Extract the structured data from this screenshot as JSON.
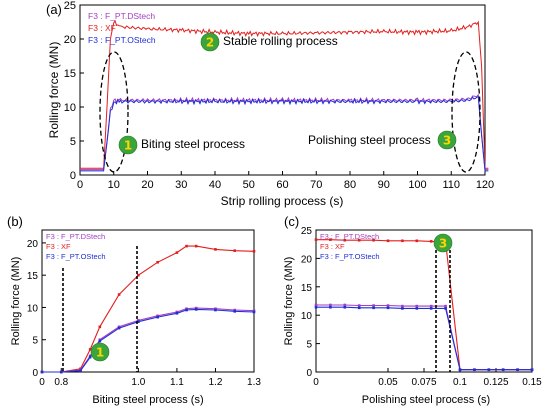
{
  "colors": {
    "dstech": "#a23fc3",
    "xf": "#e31e1e",
    "ostech": "#1f2fd6",
    "badge": "#3aa53a",
    "badge_text": "#ffd400"
  },
  "chart_data": [
    {
      "panel": "(a)",
      "type": "line",
      "xlabel": "Strip rolling process (s)",
      "ylabel": "Rolling force (MN)",
      "xlim": [
        0,
        120
      ],
      "ylim": [
        0,
        25
      ],
      "xticks": [
        0,
        10,
        20,
        30,
        40,
        50,
        60,
        70,
        80,
        90,
        100,
        110,
        120
      ],
      "yticks": [
        0,
        5,
        10,
        15,
        20,
        25
      ],
      "legend": [
        "F3 : F_PT.DStech",
        "F3 : XF",
        "F3 : F_PT.OStech"
      ],
      "annotations": [
        {
          "badge": "1",
          "text": "Biting steel process"
        },
        {
          "badge": "2",
          "text": "Stable rolling process"
        },
        {
          "badge": "3",
          "text": "Polishing steel process"
        }
      ],
      "series": [
        {
          "name": "F3 : XF",
          "x": [
            0,
            7,
            8,
            9,
            10,
            12,
            20,
            30,
            40,
            50,
            60,
            70,
            80,
            90,
            100,
            110,
            115,
            118,
            119,
            120,
            121
          ],
          "y": [
            1,
            1,
            10,
            20,
            22.5,
            21.8,
            21.5,
            21.3,
            21.0,
            20.8,
            20.8,
            20.9,
            21.0,
            21.1,
            21.0,
            21.2,
            21.8,
            22.5,
            16,
            1,
            1
          ]
        },
        {
          "name": "F3 : F_PT.DStech",
          "x": [
            0,
            7,
            8,
            9,
            10,
            12,
            20,
            40,
            60,
            80,
            100,
            110,
            115,
            118,
            119,
            120,
            121
          ],
          "y": [
            0.8,
            0.8,
            5,
            9.5,
            11,
            11,
            11,
            11,
            11,
            11,
            11,
            11,
            11.2,
            11.8,
            6,
            0.8,
            0.8
          ]
        },
        {
          "name": "F3 : F_PT.OStech",
          "x": [
            0,
            7,
            8,
            9,
            10,
            12,
            20,
            40,
            60,
            80,
            100,
            110,
            115,
            118,
            119,
            120,
            121
          ],
          "y": [
            0.6,
            0.6,
            4.8,
            9.2,
            10.7,
            10.8,
            10.8,
            10.8,
            10.8,
            10.8,
            10.8,
            10.8,
            11,
            11.5,
            5.8,
            0.6,
            0.6
          ]
        }
      ]
    },
    {
      "panel": "(b)",
      "type": "line",
      "xlabel": "Biting steel process (s)",
      "ylabel": "Rolling force (MN)",
      "xlim": [
        0.75,
        1.3
      ],
      "ylim": [
        0,
        22
      ],
      "xticks": [
        "0",
        "0.8",
        "1.0",
        "1.1",
        "1.2",
        "1.3"
      ],
      "yticks": [
        0,
        5,
        10,
        15,
        20
      ],
      "badge": "1",
      "legend": [
        "F3 : F_PT.DStech",
        "F3 : XF",
        "F3 : F_PT.OStech"
      ],
      "series": [
        {
          "name": "F3 : XF",
          "x": [
            0.75,
            0.8,
            0.85,
            0.875,
            0.9,
            0.95,
            1.0,
            1.05,
            1.1,
            1.125,
            1.15,
            1.2,
            1.25,
            1.3
          ],
          "y": [
            0,
            0,
            0.5,
            3.5,
            7,
            12,
            15,
            17,
            18.5,
            19.5,
            19.5,
            19,
            18.8,
            18.7
          ]
        },
        {
          "name": "F3 : F_PT.DStech",
          "x": [
            0.75,
            0.8,
            0.85,
            0.875,
            0.9,
            0.95,
            1.0,
            1.05,
            1.1,
            1.125,
            1.15,
            1.2,
            1.25,
            1.3
          ],
          "y": [
            0,
            0,
            0.3,
            2.5,
            5,
            7,
            8,
            8.7,
            9.3,
            9.8,
            9.9,
            9.8,
            9.6,
            9.5
          ]
        },
        {
          "name": "F3 : F_PT.OStech",
          "x": [
            0.75,
            0.8,
            0.85,
            0.875,
            0.9,
            0.95,
            1.0,
            1.05,
            1.1,
            1.125,
            1.15,
            1.2,
            1.25,
            1.3
          ],
          "y": [
            0,
            0,
            0.2,
            2.3,
            4.8,
            6.8,
            7.8,
            8.5,
            9.1,
            9.6,
            9.7,
            9.6,
            9.4,
            9.3
          ]
        }
      ]
    },
    {
      "panel": "(c)",
      "type": "line",
      "xlabel": "Polishing steel process (s)",
      "ylabel": "Rolling force (MN)",
      "xlim": [
        0,
        0.15
      ],
      "ylim": [
        0,
        25
      ],
      "xticks": [
        "0",
        "0.05",
        "0.075",
        "0.1",
        "0.125",
        "0.15"
      ],
      "yticks": [
        0,
        5,
        10,
        15,
        20,
        25
      ],
      "badge": "3",
      "legend": [
        "F3 : F_PT.DStech",
        "F3 : XF",
        "F3 : F_PT.OStech"
      ],
      "series": [
        {
          "name": "F3 : XF",
          "x": [
            0,
            0.01,
            0.02,
            0.03,
            0.04,
            0.05,
            0.06,
            0.07,
            0.08,
            0.09,
            0.1,
            0.11,
            0.12,
            0.13,
            0.14,
            0.15
          ],
          "y": [
            23.3,
            23.3,
            23.2,
            23.2,
            23.2,
            23.1,
            23.1,
            23.1,
            23.0,
            22.9,
            0.4,
            0.4,
            0.4,
            0.4,
            0.4,
            0.4
          ]
        },
        {
          "name": "F3 : F_PT.DStech",
          "x": [
            0,
            0.01,
            0.02,
            0.03,
            0.04,
            0.05,
            0.06,
            0.07,
            0.08,
            0.09,
            0.1,
            0.11,
            0.12,
            0.13,
            0.14,
            0.15
          ],
          "y": [
            11.8,
            11.8,
            11.8,
            11.7,
            11.7,
            11.7,
            11.6,
            11.6,
            11.6,
            11.6,
            0.4,
            0.4,
            0.4,
            0.4,
            0.4,
            0.4
          ]
        },
        {
          "name": "F3 : F_PT.OStech",
          "x": [
            0,
            0.01,
            0.02,
            0.03,
            0.04,
            0.05,
            0.06,
            0.07,
            0.08,
            0.09,
            0.1,
            0.11,
            0.12,
            0.13,
            0.14,
            0.15
          ],
          "y": [
            11.4,
            11.4,
            11.4,
            11.3,
            11.3,
            11.3,
            11.2,
            11.2,
            11.2,
            11.2,
            0.4,
            0.4,
            0.4,
            0.4,
            0.4,
            0.4
          ]
        }
      ]
    }
  ]
}
